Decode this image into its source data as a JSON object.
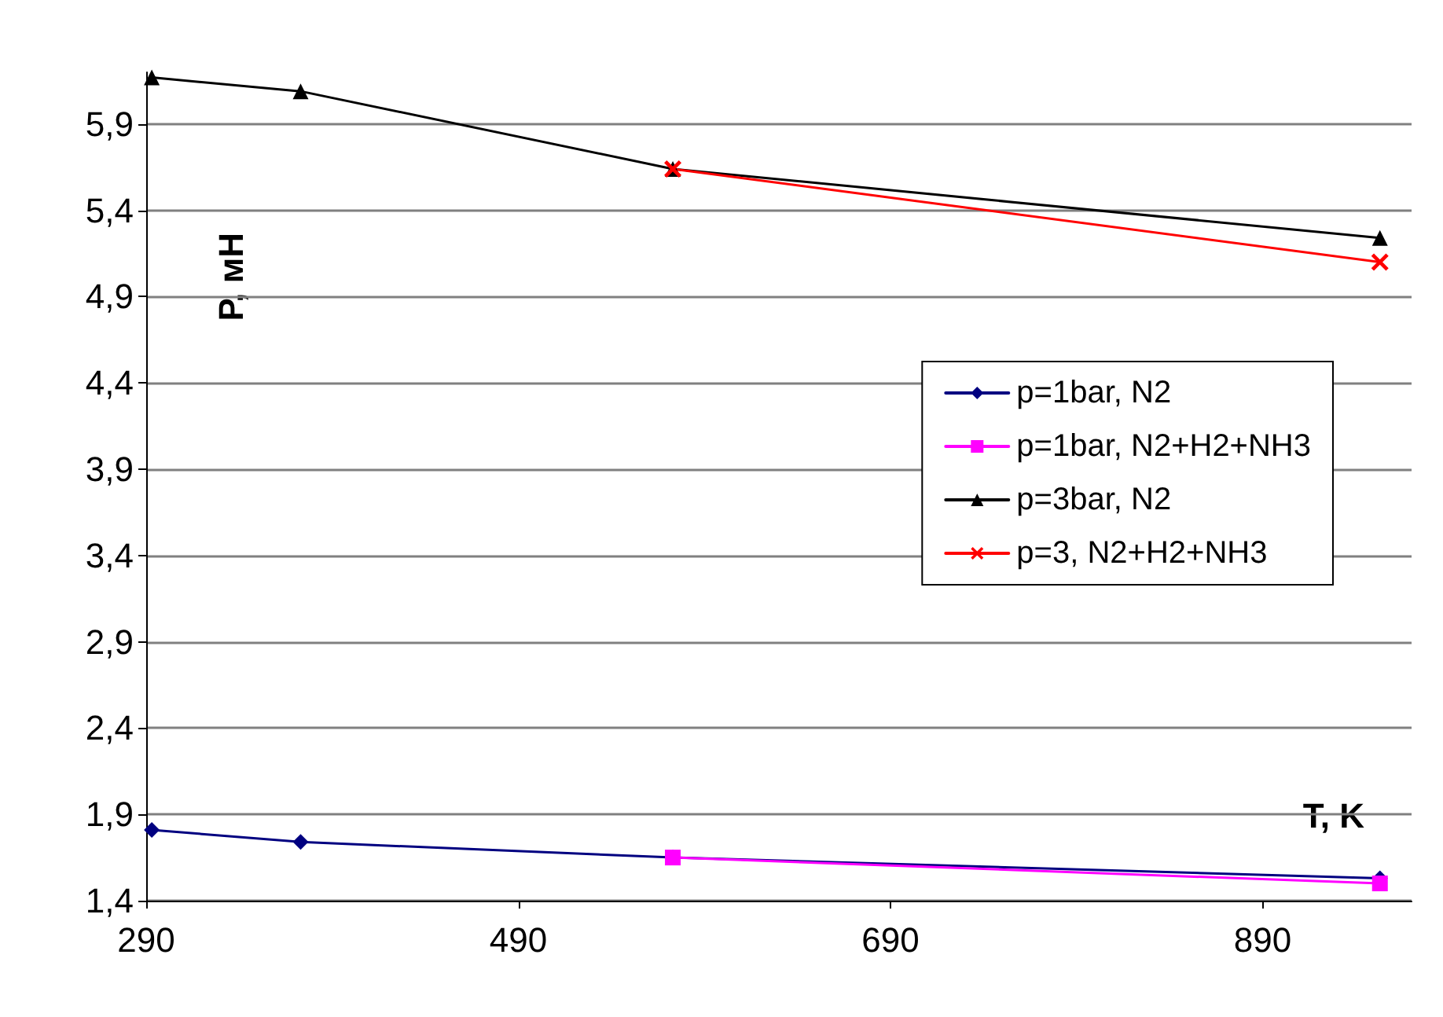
{
  "chart_data": {
    "type": "line",
    "xlabel": "T, K",
    "ylabel": "P, мН",
    "x": [
      293,
      373,
      573,
      953
    ],
    "series": [
      {
        "name": "p=1bar, N2",
        "color": "#000080",
        "marker": "diamond",
        "values": [
          1.81,
          1.74,
          1.65,
          1.53
        ]
      },
      {
        "name": "p=1bar, N2+H2+NH3",
        "color": "#ff00ff",
        "marker": "square",
        "values": [
          null,
          null,
          1.65,
          1.5
        ]
      },
      {
        "name": "p=3bar, N2",
        "color": "#000000",
        "marker": "triangle",
        "values": [
          6.17,
          6.09,
          5.64,
          5.24
        ]
      },
      {
        "name": "p=3, N2+H2+NH3",
        "color": "#ff0000",
        "marker": "cross",
        "values": [
          null,
          null,
          5.64,
          5.1
        ]
      }
    ],
    "xlim": [
      290,
      970
    ],
    "xticks": [
      290,
      490,
      690,
      890
    ],
    "ylim": [
      1.4,
      6.2
    ],
    "yticks": [
      {
        "value": 1.4,
        "label": "1,4"
      },
      {
        "value": 1.9,
        "label": "1,9"
      },
      {
        "value": 2.4,
        "label": "2,4"
      },
      {
        "value": 2.9,
        "label": "2,9"
      },
      {
        "value": 3.4,
        "label": "3,4"
      },
      {
        "value": 3.9,
        "label": "3,9"
      },
      {
        "value": 4.4,
        "label": "4,4"
      },
      {
        "value": 4.9,
        "label": "4,9"
      },
      {
        "value": 5.4,
        "label": "5,4"
      },
      {
        "value": 5.9,
        "label": "5,9"
      }
    ],
    "grid": "y",
    "legend": "right",
    "line_style": "solid"
  }
}
